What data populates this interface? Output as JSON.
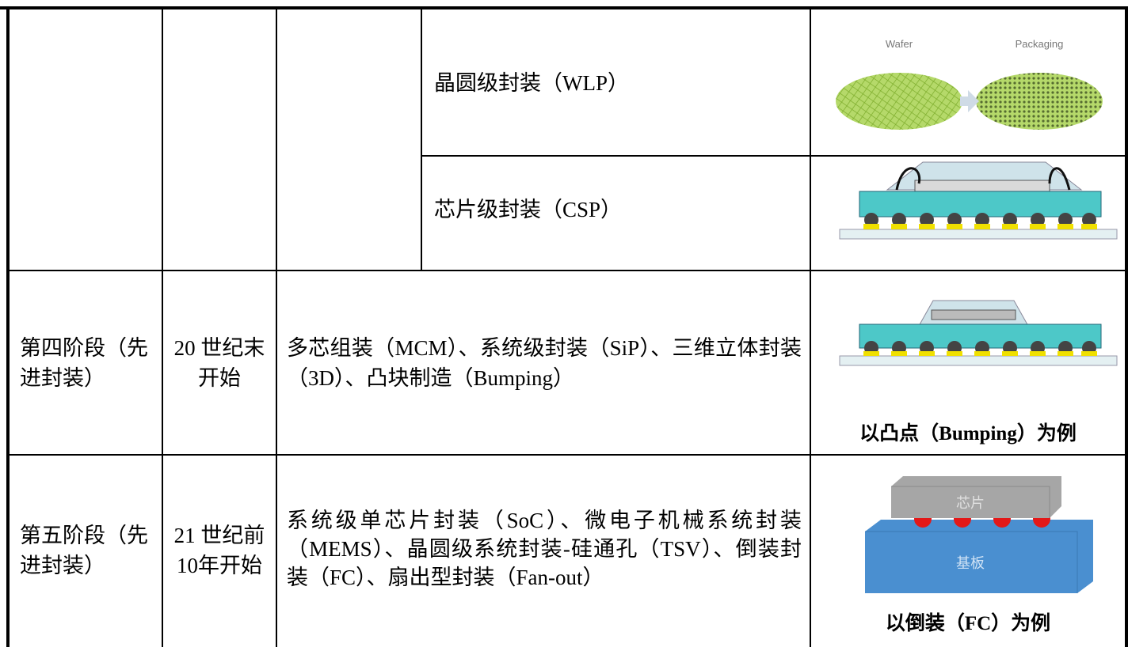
{
  "table": {
    "rows": [
      {
        "sub": [
          {
            "name": "晶圆级封装（WLP）",
            "figure_labels": [
              "Wafer",
              "Packaging"
            ]
          },
          {
            "name": "芯片级封装（CSP）"
          }
        ]
      },
      {
        "stage": "第四阶段（先进封装）",
        "period": "20 世纪末开始",
        "content": "多芯组装（MCM）、系统级封装（SiP）、三维立体封装（3D）、凸块制造（Bumping）",
        "caption": "以凸点（Bumping）为例"
      },
      {
        "stage": "第五阶段（先进封装）",
        "period": "21 世纪前10年开始",
        "content": "系统级单芯片封装（SoC）、微电子机械系统封装（MEMS）、晶圆级系统封装-硅通孔（TSV）、倒装封装（FC）、扇出型封装（Fan-out）",
        "figure_labels": [
          "芯片",
          "基板"
        ],
        "caption": "以倒装（FC）为例"
      }
    ]
  }
}
